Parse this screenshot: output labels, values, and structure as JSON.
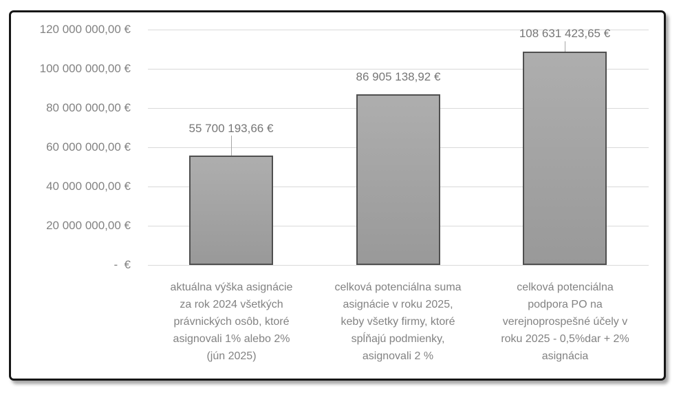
{
  "chart_data": {
    "type": "bar",
    "title": "",
    "categories": [
      "aktuálna výška asignácie\nza rok 2024 všetkých\nprávnických osôb, ktoré\nasignovali 1% alebo 2%\n(jún 2025)",
      "celková potenciálna suma\nasignácie v roku 2025,\nkeby všetky firmy, ktoré\nspĺňajú podmienky,\nasignovali 2 %",
      "celková potenciálna\npodpora PO na\nverejnoprospešné účely v\nroku 2025 - 0,5%dar + 2%\nasignácia"
    ],
    "values": [
      55700193.66,
      86905138.92,
      108631423.65
    ],
    "data_labels": [
      "55 700 193,66 €",
      "86 905 138,92 €",
      "108 631 423,65 €"
    ],
    "y_ticks": [
      "120 000 000,00 €",
      "100 000 000,00 €",
      "80 000 000,00 €",
      "60 000 000,00 €",
      "40 000 000,00 €",
      "20 000 000,00 €",
      "-  €"
    ],
    "xlabel": "",
    "ylabel": "",
    "ylim": [
      0,
      120000000
    ],
    "grid": true,
    "legend": false,
    "colors": {
      "bar_fill": "#a6a6a6",
      "bar_border": "#4f4f4f",
      "gridline": "#d9d9d9",
      "tick_text": "#828282",
      "data_label_text": "#767676",
      "frame_border": "#161616"
    }
  }
}
